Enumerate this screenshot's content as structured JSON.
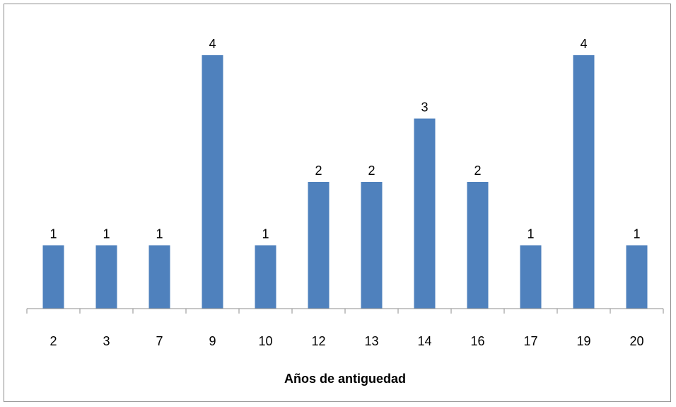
{
  "chart_data": {
    "type": "bar",
    "categories": [
      "2",
      "3",
      "7",
      "9",
      "10",
      "12",
      "13",
      "14",
      "16",
      "17",
      "19",
      "20"
    ],
    "values": [
      1,
      1,
      1,
      4,
      1,
      2,
      2,
      3,
      2,
      1,
      4,
      1
    ],
    "data_labels": [
      "1",
      "1",
      "1",
      "4",
      "1",
      "2",
      "2",
      "3",
      "2",
      "1",
      "4",
      "1"
    ],
    "title": "",
    "xlabel": "Años de antiguedad",
    "ylabel": "",
    "ylim": [
      0,
      4
    ],
    "grid": false,
    "legend": "none",
    "bar_color": "#4f81bd",
    "axis_color": "#8c8c8c",
    "border_color": "#8c8c8c"
  }
}
